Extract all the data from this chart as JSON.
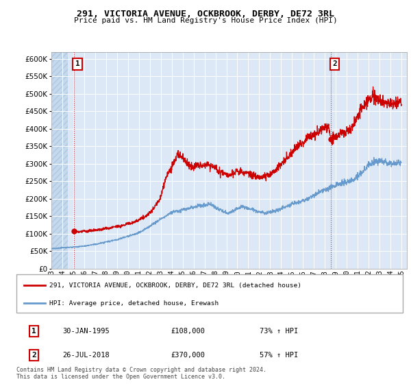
{
  "title": "291, VICTORIA AVENUE, OCKBROOK, DERBY, DE72 3RL",
  "subtitle": "Price paid vs. HM Land Registry's House Price Index (HPI)",
  "ylim": [
    0,
    620000
  ],
  "yticks": [
    0,
    50000,
    100000,
    150000,
    200000,
    250000,
    300000,
    350000,
    400000,
    450000,
    500000,
    550000,
    600000
  ],
  "xlim_start": 1993.0,
  "xlim_end": 2025.5,
  "background_color": "#ffffff",
  "plot_bg_color": "#dce8f5",
  "hatch_bg_color": "#c5d8ec",
  "legend_label_red": "291, VICTORIA AVENUE, OCKBROOK, DERBY, DE72 3RL (detached house)",
  "legend_label_blue": "HPI: Average price, detached house, Erewash",
  "annotation1_date": "30-JAN-1995",
  "annotation1_price": "£108,000",
  "annotation1_hpi": "73% ↑ HPI",
  "annotation2_date": "26-JUL-2018",
  "annotation2_price": "£370,000",
  "annotation2_hpi": "57% ↑ HPI",
  "footnote": "Contains HM Land Registry data © Crown copyright and database right 2024.\nThis data is licensed under the Open Government Licence v3.0.",
  "sale1_x": 1995.08,
  "sale1_y": 108000,
  "sale2_x": 2018.57,
  "sale2_y": 370000,
  "red_color": "#cc0000",
  "blue_color": "#6699cc",
  "vline_color": "#cc0000"
}
